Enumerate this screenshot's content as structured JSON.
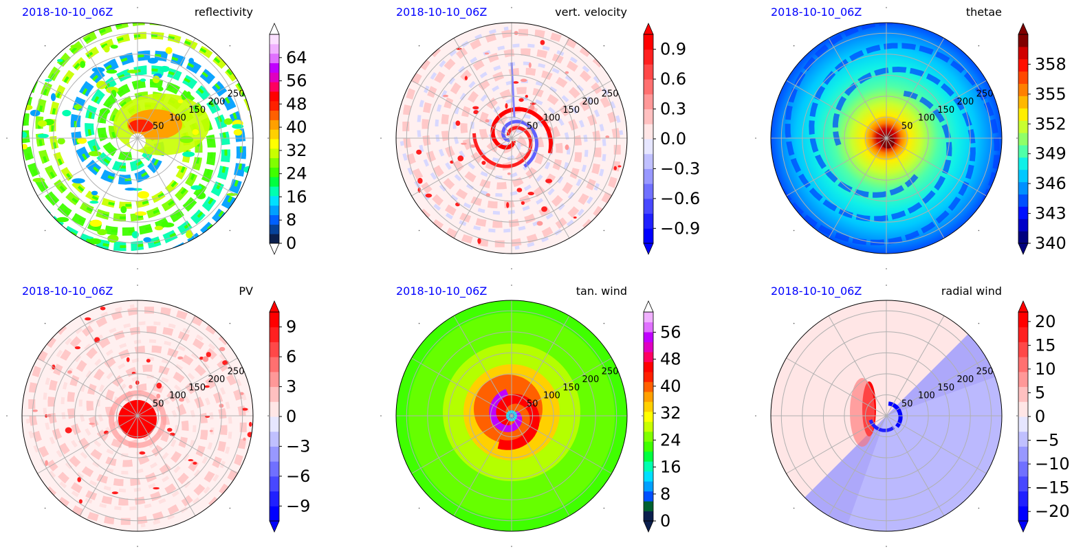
{
  "chart_data": [
    {
      "type": "polar-contour",
      "date": "2018-10-10_06Z",
      "title": "reflectivity",
      "ring_labels": [
        "50",
        "100",
        "150",
        "200",
        "250"
      ],
      "rings": [
        50,
        100,
        150,
        200,
        250
      ],
      "colorbar": {
        "ticks": [
          "0",
          "8",
          "16",
          "24",
          "32",
          "40",
          "48",
          "56",
          "64"
        ],
        "tick_values": [
          0,
          8,
          16,
          24,
          32,
          40,
          48,
          56,
          64
        ],
        "range": [
          0,
          72
        ],
        "extend": "both",
        "colors": [
          "#0b1f4d",
          "#06429a",
          "#0060ff",
          "#00a0ff",
          "#00e0ff",
          "#00ffb0",
          "#00ff40",
          "#40ff00",
          "#80ff00",
          "#c8ff00",
          "#ffff00",
          "#ffd000",
          "#ffa000",
          "#ff6000",
          "#ff2000",
          "#ff0000",
          "#ff0060",
          "#e000c0",
          "#c000ff",
          "#e070ff",
          "#f0b0ff",
          "#fbe0ff"
        ],
        "end_colors": [
          "#ffffff",
          "#ffffff"
        ]
      }
    },
    {
      "type": "polar-contour",
      "date": "2018-10-10_06Z",
      "title": "vert. velocity",
      "ring_labels": [
        "50",
        "100",
        "150",
        "200",
        "250"
      ],
      "rings": [
        50,
        100,
        150,
        200,
        250
      ],
      "colorbar": {
        "ticks": [
          "−0.9",
          "−0.6",
          "−0.3",
          "0.0",
          "0.3",
          "0.6",
          "0.9"
        ],
        "tick_values": [
          -0.9,
          -0.6,
          -0.3,
          0.0,
          0.3,
          0.6,
          0.9
        ],
        "range": [
          -1.05,
          1.05
        ],
        "extend": "both",
        "colors": [
          "#0000ff",
          "#2020ff",
          "#4848ff",
          "#7070ff",
          "#9898ff",
          "#c0c0ff",
          "#e6e6ff",
          "#ffe6e6",
          "#ffc0c0",
          "#ff9898",
          "#ff7070",
          "#ff4848",
          "#ff2020",
          "#ff0000"
        ],
        "end_colors": [
          "#0000ff",
          "#ff0000"
        ]
      }
    },
    {
      "type": "polar-contour",
      "date": "2018-10-10_06Z",
      "title": "thetae",
      "ring_labels": [
        "50",
        "100",
        "150",
        "200",
        "250"
      ],
      "rings": [
        50,
        100,
        150,
        200,
        250
      ],
      "colorbar": {
        "ticks": [
          "340",
          "343",
          "346",
          "349",
          "352",
          "355",
          "358"
        ],
        "tick_values": [
          340,
          343,
          346,
          349,
          352,
          355,
          358
        ],
        "range": [
          340,
          361
        ],
        "extend": "both",
        "colors": [
          "#00007f",
          "#0000c8",
          "#0010ff",
          "#0050ff",
          "#0090ff",
          "#00c8ff",
          "#10f0e8",
          "#50ffa8",
          "#90ff68",
          "#c8ff30",
          "#ffee00",
          "#ffb800",
          "#ff8000",
          "#ff4800",
          "#ff1000",
          "#d00000",
          "#800000"
        ],
        "end_colors": [
          "#00007f",
          "#800000"
        ]
      }
    },
    {
      "type": "polar-contour",
      "date": "2018-10-10_06Z",
      "title": "PV",
      "ring_labels": [
        "50",
        "100",
        "150",
        "200",
        "250"
      ],
      "rings": [
        50,
        100,
        150,
        200,
        250
      ],
      "colorbar": {
        "ticks": [
          "−9",
          "−6",
          "−3",
          "0",
          "3",
          "6",
          "9"
        ],
        "tick_values": [
          -9,
          -6,
          -3,
          0,
          3,
          6,
          9
        ],
        "range": [
          -10.5,
          10.5
        ],
        "extend": "both",
        "colors": [
          "#0000ff",
          "#2020ff",
          "#4848ff",
          "#7070ff",
          "#9898ff",
          "#c0c0ff",
          "#e6e6ff",
          "#ffe6e6",
          "#ffc0c0",
          "#ff9898",
          "#ff7070",
          "#ff4848",
          "#ff2020",
          "#ff0000"
        ],
        "end_colors": [
          "#0000ff",
          "#ff0000"
        ]
      }
    },
    {
      "type": "polar-contour",
      "date": "2018-10-10_06Z",
      "title": "tan. wind",
      "ring_labels": [
        "50",
        "100",
        "150",
        "200",
        "250"
      ],
      "rings": [
        50,
        100,
        150,
        200,
        250
      ],
      "colorbar": {
        "ticks": [
          "0",
          "8",
          "16",
          "24",
          "32",
          "40",
          "48",
          "56"
        ],
        "tick_values": [
          0,
          8,
          16,
          24,
          32,
          40,
          48,
          56
        ],
        "range": [
          0,
          62
        ],
        "extend": "both",
        "colors": [
          "#0b1f4d",
          "#006030",
          "#0050ff",
          "#00a0ff",
          "#00e0ff",
          "#00ffb0",
          "#00ff40",
          "#40ff00",
          "#80ff00",
          "#c8ff00",
          "#ffff00",
          "#ffd000",
          "#ffa000",
          "#ff6000",
          "#ff2000",
          "#ff0000",
          "#ff0060",
          "#e000c0",
          "#c000ff",
          "#e070ff",
          "#f0b0ff"
        ],
        "end_colors": [
          "#0b1f4d",
          "#ffffff"
        ]
      }
    },
    {
      "type": "polar-contour",
      "date": "2018-10-10_06Z",
      "title": "radial wind",
      "ring_labels": [
        "50",
        "100",
        "150",
        "200",
        "250"
      ],
      "rings": [
        50,
        100,
        150,
        200,
        250
      ],
      "colorbar": {
        "ticks": [
          "−20",
          "−15",
          "−10",
          "−5",
          "0",
          "5",
          "10",
          "15",
          "20"
        ],
        "tick_values": [
          -20,
          -15,
          -10,
          -5,
          0,
          5,
          10,
          15,
          20
        ],
        "range": [
          -22,
          22
        ],
        "extend": "both",
        "colors": [
          "#0000ff",
          "#2020ff",
          "#4848ff",
          "#7070ff",
          "#9898ff",
          "#c0c0ff",
          "#e6e6ff",
          "#ffe6e6",
          "#ffc0c0",
          "#ff9898",
          "#ff7070",
          "#ff4848",
          "#ff2020",
          "#ff0000"
        ],
        "end_colors": [
          "#0000ff",
          "#ff0000"
        ]
      }
    }
  ]
}
